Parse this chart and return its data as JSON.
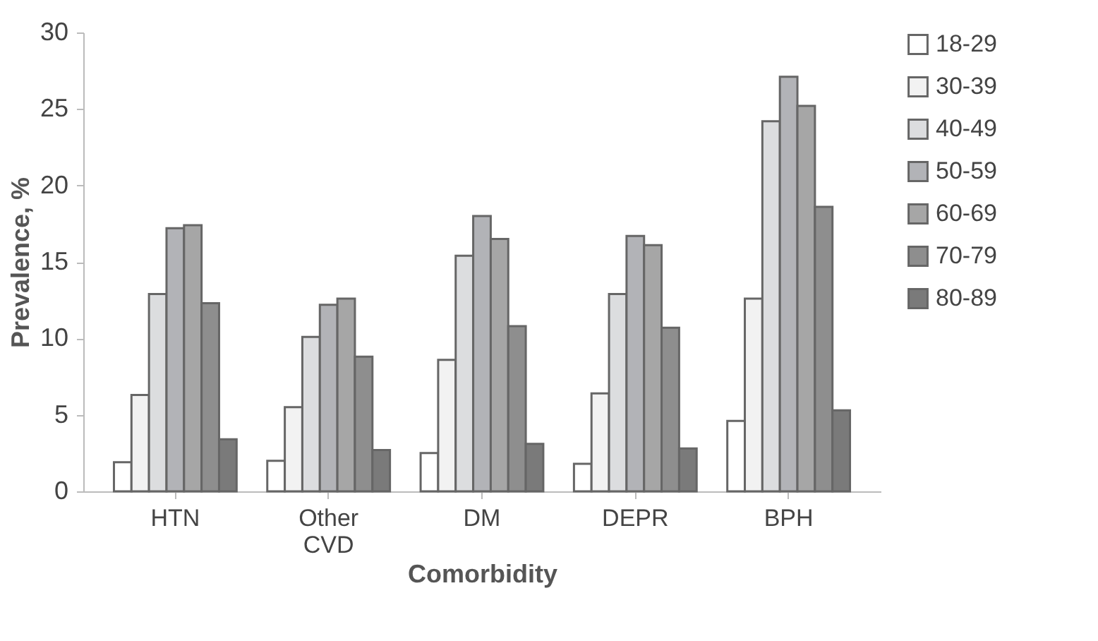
{
  "chart_data": {
    "type": "bar",
    "xlabel": "Comorbidity",
    "ylabel": "Prevalence, %",
    "categories": [
      "HTN",
      "Other CVD",
      "DM",
      "DEPR",
      "BPH"
    ],
    "series": [
      {
        "name": "18-29",
        "color": "#ffffff",
        "values": [
          1.9,
          2.0,
          2.5,
          1.8,
          4.6
        ]
      },
      {
        "name": "30-39",
        "color": "#f2f2f2",
        "values": [
          6.3,
          5.5,
          8.6,
          6.4,
          12.6
        ]
      },
      {
        "name": "40-49",
        "color": "#dcdddf",
        "values": [
          12.9,
          10.1,
          15.4,
          12.9,
          24.2
        ]
      },
      {
        "name": "50-59",
        "color": "#b2b3b7",
        "values": [
          17.2,
          12.2,
          18.0,
          16.7,
          27.1
        ]
      },
      {
        "name": "60-69",
        "color": "#a6a6a6",
        "values": [
          17.4,
          12.6,
          16.5,
          16.1,
          25.2
        ]
      },
      {
        "name": "70-79",
        "color": "#8e8e8e",
        "values": [
          12.3,
          8.8,
          10.8,
          10.7,
          18.6
        ]
      },
      {
        "name": "80-89",
        "color": "#7a7a7a",
        "values": [
          3.4,
          2.7,
          3.1,
          2.8,
          5.3
        ]
      }
    ],
    "ylim": [
      0,
      30
    ],
    "yticks": [
      0,
      5,
      10,
      15,
      20,
      25,
      30
    ],
    "grid": false,
    "legend": "right"
  }
}
